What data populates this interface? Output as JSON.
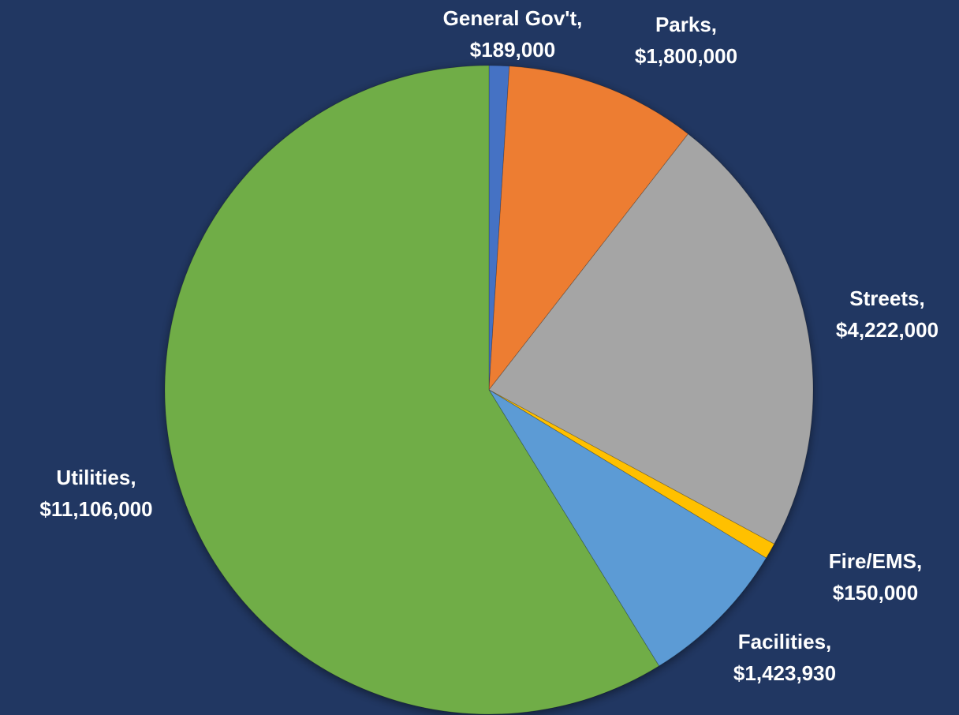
{
  "chart_data": {
    "type": "pie",
    "categories": [
      "General Gov't,",
      "Parks,",
      "Streets,",
      "Fire/EMS,",
      "Facilities,",
      "Utilities,"
    ],
    "values": [
      189000,
      1800000,
      4222000,
      150000,
      1423930,
      11106000
    ],
    "value_labels": [
      "$189,000",
      "$1,800,000",
      "$4,222,000",
      "$150,000",
      "$1,423,930",
      "$11,106,000"
    ],
    "colors": [
      "#4472c4",
      "#ed7d31",
      "#a5a5a5",
      "#ffc000",
      "#5b9bd5",
      "#70ad47"
    ]
  }
}
